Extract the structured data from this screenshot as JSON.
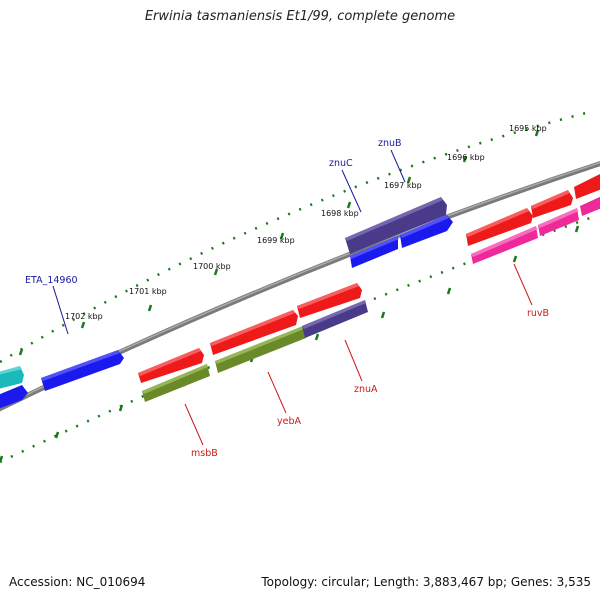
{
  "title": "Erwinia tasmaniensis Et1/99, complete genome",
  "footer": {
    "accession": "Accession: NC_010694",
    "summary": "Topology: circular; Length: 3,883,467 bp; Genes: 3,535"
  },
  "scale_labels": [
    "1695 kbp",
    "1696 kbp",
    "1697 kbp",
    "1698 kbp",
    "1699 kbp",
    "1700 kbp",
    "1701 kbp",
    "1702 kbp"
  ],
  "gene_labels": {
    "znuB": "znuB",
    "znuC": "znuC",
    "ETA_14960": "ETA_14960",
    "ruvB": "ruvB",
    "znuA": "znuA",
    "yebA": "yebA",
    "msbB": "msbB"
  },
  "colors": {
    "backbone": "#808080",
    "tick": "#1a7a1a",
    "forward_label": "#1a1a9a",
    "reverse_label": "#cc1a1a",
    "red": "#ff1a1a",
    "blue": "#1a1aee",
    "navy_purple": "#4a3a8a",
    "olive": "#6a8a2a",
    "magenta": "#ee2a9a",
    "cyan": "#1ababa"
  }
}
